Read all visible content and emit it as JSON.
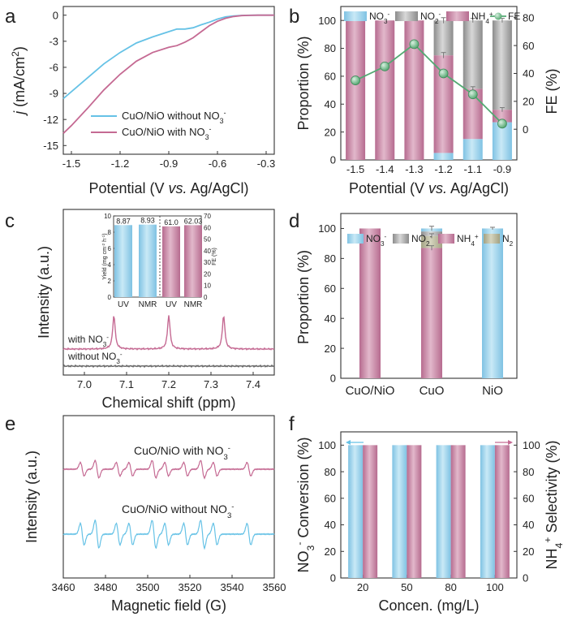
{
  "colors": {
    "blue": "#9fd3ea",
    "blue_dark": "#6fb6d8",
    "gray": "#9b9b9b",
    "gray_light": "#cfcfcf",
    "pink": "#c98aa5",
    "pink_dark": "#a9557c",
    "khaki": "#b7b69b",
    "green": "#7fc29b",
    "green_line": "#52a972",
    "cyan_line": "#66c2e6",
    "pink_line": "#c56a93"
  },
  "panels": {
    "a": {
      "letter": "a",
      "type": "line",
      "xlabel": "Potential (V vs. Ag/AgCl)",
      "ylabel": "j (mA/cm2)",
      "xlim": [
        -1.55,
        -0.25
      ],
      "ylim": [
        -16,
        1
      ],
      "xticks": [
        "-1.5",
        "-1.2",
        "-0.9",
        "-0.6",
        "-0.3"
      ],
      "xtick_values": [
        -1.5,
        -1.2,
        -0.9,
        -0.6,
        -0.3
      ],
      "yticks": [
        "0",
        "-3",
        "-6",
        "-9",
        "-12",
        "-15"
      ],
      "ytick_values": [
        0,
        -3,
        -6,
        -9,
        -12,
        -15
      ],
      "legend": [
        "CuO/NiO without NO3-",
        "CuO/NiO with NO3-"
      ],
      "series": [
        {
          "name": "CuO/NiO without NO3-",
          "x": [
            -1.55,
            -1.5,
            -1.4,
            -1.3,
            -1.2,
            -1.1,
            -1.0,
            -0.9,
            -0.85,
            -0.8,
            -0.75,
            -0.7,
            -0.65,
            -0.6,
            -0.55,
            -0.5,
            -0.45,
            -0.4,
            -0.35,
            -0.3,
            -0.25
          ],
          "y": [
            -9.6,
            -8.8,
            -7.2,
            -5.6,
            -4.3,
            -3.2,
            -2.5,
            -1.9,
            -1.6,
            -1.6,
            -1.45,
            -1.1,
            -0.8,
            -0.45,
            -0.2,
            -0.08,
            -0.03,
            -0.01,
            0.0,
            0.0,
            0.0
          ]
        },
        {
          "name": "CuO/NiO with NO3-",
          "x": [
            -1.55,
            -1.5,
            -1.4,
            -1.3,
            -1.2,
            -1.1,
            -1.0,
            -0.9,
            -0.85,
            -0.8,
            -0.75,
            -0.7,
            -0.65,
            -0.6,
            -0.55,
            -0.5,
            -0.45,
            -0.4,
            -0.35,
            -0.3,
            -0.25
          ],
          "y": [
            -13.6,
            -12.7,
            -10.7,
            -8.6,
            -6.8,
            -5.3,
            -4.3,
            -3.7,
            -3.5,
            -3.1,
            -2.6,
            -1.9,
            -1.2,
            -0.7,
            -0.35,
            -0.15,
            -0.05,
            -0.02,
            0.0,
            0.0,
            0.0
          ]
        }
      ]
    },
    "b": {
      "letter": "b",
      "type": "bar",
      "xlabel": "Potential (V vs. Ag/AgCl)",
      "ylabel": "Proportion (%)",
      "y2label": "FE (%)",
      "categories": [
        "-1.5",
        "-1.4",
        "-1.3",
        "-1.2",
        "-1.1",
        "-0.9"
      ],
      "ylim": [
        0,
        110
      ],
      "yticks": [
        "0",
        "20",
        "40",
        "60",
        "80",
        "100"
      ],
      "y2lim": [
        -22,
        88
      ],
      "y2ticks": [
        "0",
        "20",
        "40",
        "60",
        "80"
      ],
      "legend": [
        "NO3-",
        "NO2-",
        "NH4+",
        "FE"
      ],
      "stacks": [
        {
          "name": "NO3-",
          "values": [
            0,
            0,
            0,
            5,
            15,
            27
          ]
        },
        {
          "name": "NH4+",
          "values": [
            100,
            100,
            100,
            70,
            36,
            9
          ]
        },
        {
          "name": "NO2-",
          "values": [
            0,
            0,
            0,
            25,
            49,
            64
          ]
        }
      ],
      "errors": [
        0,
        0,
        0,
        2,
        1.5,
        1.5
      ],
      "fe_series": {
        "name": "FE",
        "values": [
          35,
          45,
          61,
          40,
          25,
          4
        ]
      }
    },
    "c": {
      "letter": "c",
      "type": "line",
      "xlabel": "Chemical shift (ppm)",
      "ylabel": "Intensity (a.u.)",
      "xlim": [
        6.95,
        7.45
      ],
      "xticks": [
        "7.0",
        "7.1",
        "7.2",
        "7.3",
        "7.4"
      ],
      "xtick_values": [
        7.0,
        7.1,
        7.2,
        7.3,
        7.4
      ],
      "peaks": [
        7.07,
        7.2,
        7.33
      ],
      "trace_labels": [
        "with NO3-",
        "without NO3-"
      ],
      "inset": {
        "ylabel": "Yield (mg cm-2 h-1)",
        "y2label": "FE (%)",
        "ylim": [
          0,
          10
        ],
        "yticks": [
          "0",
          "2",
          "4",
          "6",
          "8",
          "10"
        ],
        "y2lim": [
          0,
          70
        ],
        "y2ticks": [
          "0",
          "10",
          "20",
          "30",
          "40",
          "50",
          "60",
          "70"
        ],
        "categories": [
          "UV",
          "NMR",
          "UV",
          "NMR"
        ],
        "values": [
          8.87,
          8.93,
          61.0,
          62.03
        ],
        "value_labels": [
          "8.87",
          "8.93",
          "61.0",
          "62.03"
        ]
      }
    },
    "d": {
      "letter": "d",
      "type": "bar",
      "ylabel": "Proportion (%)",
      "categories": [
        "CuO/NiO",
        "CuO",
        "NiO"
      ],
      "ylim": [
        0,
        110
      ],
      "yticks": [
        "0",
        "20",
        "40",
        "60",
        "80",
        "100"
      ],
      "legend": [
        "NO3-",
        "NO2-",
        "NH4+",
        "N2"
      ],
      "stacks": [
        {
          "name": "NH4+",
          "values": [
            100,
            87,
            0
          ]
        },
        {
          "name": "N2",
          "values": [
            0,
            8,
            0
          ]
        },
        {
          "name": "NO2-",
          "values": [
            0,
            3,
            0
          ]
        },
        {
          "name": "NO3-",
          "values": [
            0,
            2,
            100
          ]
        }
      ],
      "errors": [
        0,
        1.5,
        0.8
      ]
    },
    "e": {
      "letter": "e",
      "type": "line",
      "xlabel": "Magnetic field (G)",
      "ylabel": "Intensity (a.u.)",
      "xlim": [
        3460,
        3560
      ],
      "xticks": [
        "3460",
        "3480",
        "3500",
        "3520",
        "3540",
        "3560"
      ],
      "xtick_values": [
        3460,
        3480,
        3500,
        3520,
        3540,
        3560
      ],
      "trace_labels": [
        "CuO/NiO with NO3-",
        "CuO/NiO without NO3-"
      ],
      "lines": [
        3469,
        3476,
        3486,
        3492,
        3503,
        3509,
        3518,
        3526,
        3532,
        3548
      ]
    },
    "f": {
      "letter": "f",
      "type": "bar",
      "xlabel": "Concen. (mg/L)",
      "ylabel": "NO3- Conversion (%)",
      "y2label": "NH4+ Selectivity (%)",
      "categories": [
        "20",
        "50",
        "80",
        "100"
      ],
      "ylim": [
        0,
        110
      ],
      "yticks": [
        "0",
        "20",
        "40",
        "60",
        "80",
        "100"
      ],
      "series": [
        {
          "name": "NO3- Conversion",
          "values": [
            100,
            100,
            100,
            100
          ]
        },
        {
          "name": "NH4+ Selectivity",
          "values": [
            100,
            100,
            100,
            100
          ]
        }
      ]
    }
  }
}
